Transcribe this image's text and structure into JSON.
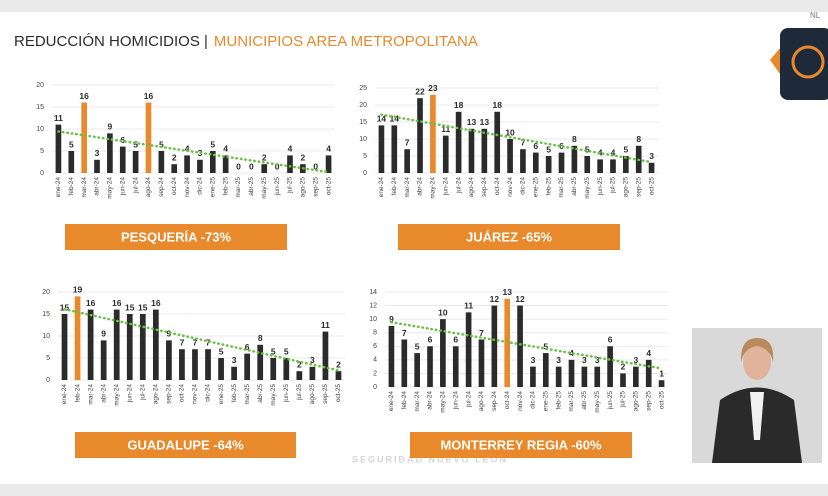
{
  "header": {
    "title": "REDUCCIÓN HOMICIDIOS |",
    "subtitle": "MUNICIPIOS AREA METROPOLITANA"
  },
  "logo_text": "NL",
  "footer": "SEGURIDAD NUEVO LEÓN",
  "chart_data": [
    {
      "type": "bar",
      "title": "PESQUERÍA -73%",
      "categories": [
        "ene-24",
        "feb-24",
        "mar-24",
        "abr-24",
        "may-24",
        "jun-24",
        "jul-24",
        "ago-24",
        "sep-24",
        "oct-24",
        "nov-24",
        "dic-24",
        "ene-25",
        "feb-25",
        "mar-25",
        "abr-25",
        "may-25",
        "jun-25",
        "jul-25",
        "ago-25",
        "sep-25",
        "oct-25"
      ],
      "values": [
        11,
        5,
        16,
        3,
        9,
        6,
        5,
        16,
        5,
        2,
        4,
        3,
        5,
        4,
        0,
        0,
        2,
        0,
        4,
        2,
        0,
        4
      ],
      "color": "#2b2b2b",
      "highlight_color": "#e8892b",
      "highlight": [
        2,
        7
      ],
      "trend_color": "#6cc04a",
      "ylim": [
        0,
        20
      ],
      "yticks": [
        0,
        5,
        10,
        15,
        20
      ],
      "grid": true
    },
    {
      "type": "bar",
      "title": "JUÁREZ -65%",
      "categories": [
        "ene-24",
        "feb-24",
        "mar-24",
        "abr-24",
        "may-24",
        "jun-24",
        "jul-24",
        "ago-24",
        "sep-24",
        "oct-24",
        "nov-24",
        "dic-24",
        "ene-25",
        "feb-25",
        "mar-25",
        "abr-25",
        "may-25",
        "jun-25",
        "jul-25",
        "ago-25",
        "sep-25",
        "oct-25"
      ],
      "values": [
        14,
        14,
        7,
        22,
        23,
        11,
        18,
        13,
        13,
        18,
        10,
        7,
        6,
        5,
        6,
        8,
        5,
        4,
        4,
        5,
        8,
        3
      ],
      "color": "#2b2b2b",
      "highlight_color": "#e8892b",
      "highlight": [
        4
      ],
      "trend_color": "#6cc04a",
      "ylim": [
        0,
        25
      ],
      "yticks": [
        0,
        5,
        10,
        15,
        20,
        25
      ],
      "grid": true
    },
    {
      "type": "bar",
      "title": "GUADALUPE -64%",
      "categories": [
        "ene-24",
        "feb-24",
        "mar-24",
        "abr-24",
        "may-24",
        "jun-24",
        "jul-24",
        "ago-24",
        "sep-24",
        "oct-24",
        "nov-24",
        "dic-24",
        "ene-25",
        "feb-25",
        "mar-25",
        "abr-25",
        "may-25",
        "jun-25",
        "jul-25",
        "ago-25",
        "sep-25",
        "oct-25"
      ],
      "values": [
        15,
        19,
        16,
        9,
        16,
        15,
        15,
        16,
        9,
        7,
        7,
        7,
        5,
        3,
        6,
        8,
        5,
        5,
        2,
        3,
        11,
        2
      ],
      "color": "#2b2b2b",
      "highlight_color": "#e8892b",
      "highlight": [
        1
      ],
      "trend_color": "#6cc04a",
      "ylim": [
        0,
        20
      ],
      "yticks": [
        0,
        5,
        10,
        15,
        20
      ],
      "grid": true
    },
    {
      "type": "bar",
      "title": "MONTERREY REGIA -60%",
      "categories": [
        "ene-24",
        "feb-24",
        "mar-24",
        "abr-24",
        "may-24",
        "jun-24",
        "jul-24",
        "ago-24",
        "sep-24",
        "oct-24",
        "nov-24",
        "dic-24",
        "ene-25",
        "feb-25",
        "mar-25",
        "abr-25",
        "may-25",
        "jun-25",
        "jul-25",
        "ago-25",
        "sep-25",
        "oct-25"
      ],
      "values": [
        9,
        7,
        5,
        6,
        10,
        6,
        11,
        7,
        12,
        13,
        12,
        3,
        5,
        3,
        4,
        3,
        3,
        6,
        2,
        3,
        4,
        1
      ],
      "color": "#2b2b2b",
      "highlight_color": "#e8892b",
      "highlight": [
        9
      ],
      "trend_color": "#6cc04a",
      "ylim": [
        0,
        14
      ],
      "yticks": [
        0,
        2,
        4,
        6,
        8,
        10,
        12,
        14
      ],
      "grid": true
    }
  ]
}
